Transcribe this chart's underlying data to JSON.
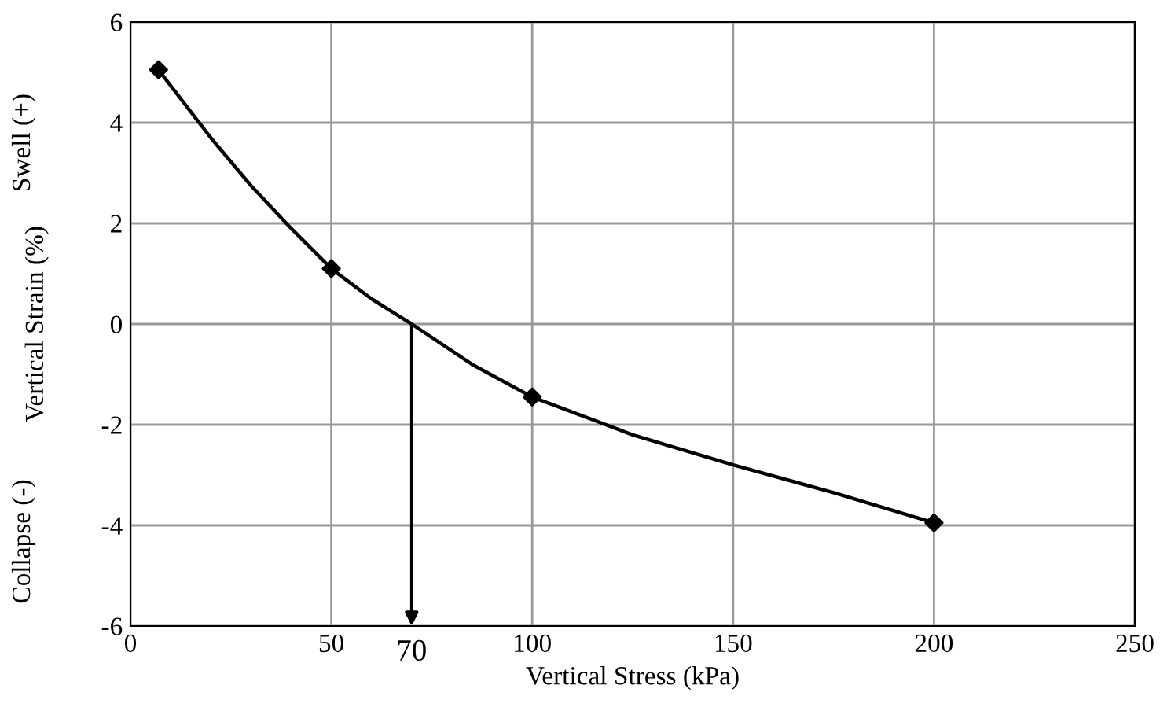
{
  "chart_data": {
    "type": "line",
    "xlabel": "Vertical Stress (kPa)",
    "ylabel": "Vertical Strain (%)",
    "xlim": [
      0,
      250
    ],
    "xticks": [
      0,
      50,
      100,
      150,
      200,
      250
    ],
    "ylim": [
      -6,
      6
    ],
    "yticks": [
      -6,
      -4,
      -2,
      0,
      2,
      4,
      6
    ],
    "grid": true,
    "legend": false,
    "series": [
      {
        "color": "#000000",
        "marker": "none",
        "x": [
          7,
          20,
          30,
          40,
          50,
          60,
          70,
          85,
          100,
          125,
          150,
          175,
          200
        ],
        "values": [
          5.05,
          3.7,
          2.75,
          1.9,
          1.1,
          0.5,
          0,
          -0.8,
          -1.45,
          -2.2,
          -2.8,
          -3.35,
          -3.95
        ]
      },
      {
        "type": "scatter",
        "color": "#000000",
        "marker": "diamond",
        "x": [
          7,
          50,
          100,
          200
        ],
        "values": [
          5.05,
          1.1,
          -1.45,
          -3.95
        ]
      }
    ],
    "annotations": [
      "Swell (+)",
      "Collapse (-)",
      {
        "text": "70",
        "x": 70,
        "y": 0
      }
    ]
  }
}
